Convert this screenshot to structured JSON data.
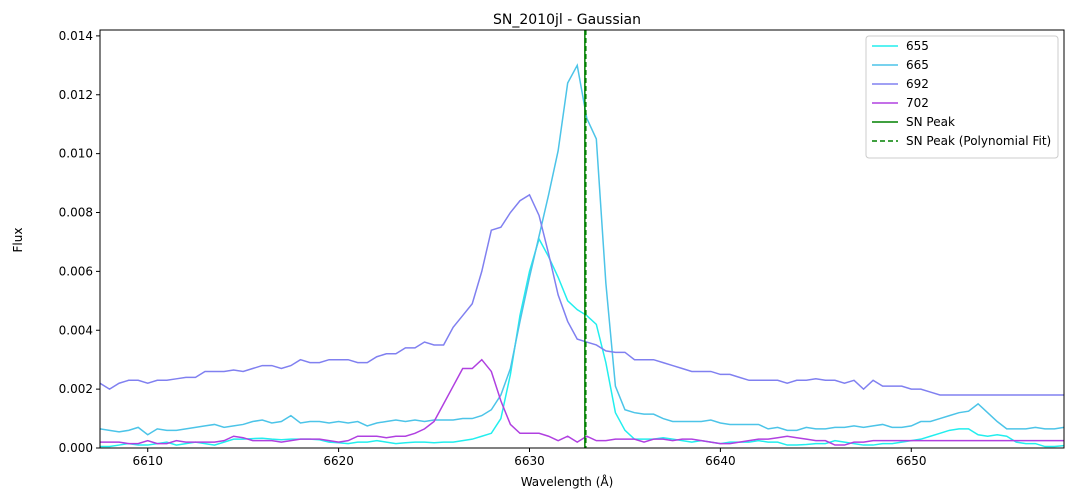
{
  "chart_data": {
    "type": "line",
    "title": "SN_2010jl - Gaussian",
    "xlabel": "Wavelength (Å)",
    "ylabel": "Flux",
    "xlim": [
      6607.5,
      6658
    ],
    "ylim": [
      0,
      0.0142
    ],
    "x_ticks": [
      6610,
      6620,
      6630,
      6640,
      6650
    ],
    "x_tick_labels": [
      "6610",
      "6620",
      "6630",
      "6640",
      "6650"
    ],
    "y_ticks": [
      0,
      0.002,
      0.004,
      0.006,
      0.008,
      0.01,
      0.012,
      0.014
    ],
    "y_tick_labels": [
      "0.000",
      "0.002",
      "0.004",
      "0.006",
      "0.008",
      "0.010",
      "0.012",
      "0.014"
    ],
    "grid": false,
    "legend_position": "top-right",
    "x": [
      6607.5,
      6608,
      6608.5,
      6609,
      6609.5,
      6610,
      6610.5,
      6611,
      6611.5,
      6612,
      6612.5,
      6613,
      6613.5,
      6614,
      6614.5,
      6615,
      6615.5,
      6616,
      6616.5,
      6617,
      6617.5,
      6618,
      6618.5,
      6619,
      6619.5,
      6620,
      6620.5,
      6621,
      6621.5,
      6622,
      6622.5,
      6623,
      6623.5,
      6624,
      6624.5,
      6625,
      6625.5,
      6626,
      6626.5,
      6627,
      6627.5,
      6628,
      6628.5,
      6629,
      6629.5,
      6630,
      6630.5,
      6631,
      6631.5,
      6632,
      6632.5,
      6633,
      6633.5,
      6634,
      6634.5,
      6635,
      6635.5,
      6636,
      6636.5,
      6637,
      6637.5,
      6638,
      6638.5,
      6639,
      6639.5,
      6640,
      6640.5,
      6641,
      6641.5,
      6642,
      6642.5,
      6643,
      6643.5,
      6644,
      6644.5,
      6645,
      6645.5,
      6646,
      6646.5,
      6647,
      6647.5,
      6648,
      6648.5,
      6649,
      6649.5,
      6650,
      6650.5,
      6651,
      6651.5,
      6652,
      6652.5,
      6653,
      6653.5,
      6654,
      6654.5,
      6655,
      6655.5,
      6656,
      6656.5,
      6657,
      6657.5,
      6658
    ],
    "series": [
      {
        "name": "655",
        "color": "#22eeee",
        "dashed": false,
        "values": [
          5e-05,
          5e-05,
          0.0001,
          0.00015,
          0.0001,
          0.0001,
          0.00015,
          0.0002,
          0.0001,
          0.00015,
          0.0002,
          0.00015,
          0.0001,
          0.0002,
          0.0003,
          0.0003,
          0.00032,
          0.00033,
          0.0003,
          0.00028,
          0.0003,
          0.0003,
          0.0003,
          0.00028,
          0.0002,
          0.00018,
          0.00015,
          0.0002,
          0.0002,
          0.00025,
          0.0002,
          0.00015,
          0.00018,
          0.0002,
          0.0002,
          0.00018,
          0.0002,
          0.0002,
          0.00025,
          0.0003,
          0.0004,
          0.0005,
          0.001,
          0.0025,
          0.0045,
          0.006,
          0.0071,
          0.0065,
          0.0058,
          0.005,
          0.0047,
          0.0045,
          0.0042,
          0.0029,
          0.0012,
          0.0006,
          0.0003,
          0.0003,
          0.0003,
          0.00035,
          0.0003,
          0.00025,
          0.0002,
          0.00025,
          0.0002,
          0.00015,
          0.0002,
          0.0002,
          0.0002,
          0.00025,
          0.0002,
          0.0002,
          0.0001,
          0.0001,
          0.00012,
          0.00015,
          0.00015,
          0.00025,
          0.0002,
          0.00015,
          0.0001,
          0.0001,
          0.00015,
          0.00015,
          0.0002,
          0.00025,
          0.0003,
          0.0004,
          0.0005,
          0.0006,
          0.00065,
          0.00065,
          0.00045,
          0.0004,
          0.00045,
          0.0004,
          0.0002,
          0.00015,
          0.00015,
          5e-05,
          5e-05,
          8e-05
        ]
      },
      {
        "name": "665",
        "color": "#4cc4e8",
        "dashed": false,
        "values": [
          0.00065,
          0.0006,
          0.00055,
          0.0006,
          0.0007,
          0.00045,
          0.00065,
          0.0006,
          0.0006,
          0.00065,
          0.0007,
          0.00075,
          0.0008,
          0.0007,
          0.00075,
          0.0008,
          0.0009,
          0.00095,
          0.00085,
          0.0009,
          0.0011,
          0.00085,
          0.0009,
          0.0009,
          0.00085,
          0.0009,
          0.00085,
          0.0009,
          0.00075,
          0.00085,
          0.0009,
          0.00095,
          0.0009,
          0.00095,
          0.0009,
          0.00095,
          0.00095,
          0.00095,
          0.001,
          0.001,
          0.0011,
          0.0013,
          0.0018,
          0.0027,
          0.0043,
          0.0058,
          0.0072,
          0.0086,
          0.0101,
          0.0124,
          0.013,
          0.0112,
          0.0105,
          0.0056,
          0.0021,
          0.0013,
          0.0012,
          0.00115,
          0.00115,
          0.001,
          0.0009,
          0.0009,
          0.0009,
          0.0009,
          0.00095,
          0.00085,
          0.0008,
          0.0008,
          0.0008,
          0.0008,
          0.00065,
          0.0007,
          0.0006,
          0.0006,
          0.0007,
          0.00065,
          0.00065,
          0.0007,
          0.0007,
          0.00075,
          0.0007,
          0.00075,
          0.0008,
          0.0007,
          0.0007,
          0.00075,
          0.0009,
          0.0009,
          0.001,
          0.0011,
          0.0012,
          0.00125,
          0.0015,
          0.0012,
          0.0009,
          0.00065,
          0.00065,
          0.00065,
          0.0007,
          0.00065,
          0.00065,
          0.0007
        ]
      },
      {
        "name": "692",
        "color": "#8080f0",
        "dashed": false,
        "values": [
          0.0022,
          0.002,
          0.0022,
          0.0023,
          0.0023,
          0.0022,
          0.0023,
          0.0023,
          0.00235,
          0.0024,
          0.0024,
          0.0026,
          0.0026,
          0.0026,
          0.00265,
          0.0026,
          0.0027,
          0.0028,
          0.0028,
          0.0027,
          0.0028,
          0.003,
          0.0029,
          0.0029,
          0.003,
          0.003,
          0.003,
          0.0029,
          0.0029,
          0.0031,
          0.0032,
          0.0032,
          0.0034,
          0.0034,
          0.0036,
          0.0035,
          0.0035,
          0.0041,
          0.0045,
          0.0049,
          0.006,
          0.0074,
          0.0075,
          0.008,
          0.0084,
          0.0086,
          0.0079,
          0.0066,
          0.0052,
          0.0043,
          0.0037,
          0.0036,
          0.0035,
          0.0033,
          0.00325,
          0.00325,
          0.003,
          0.003,
          0.003,
          0.0029,
          0.0028,
          0.0027,
          0.0026,
          0.0026,
          0.0026,
          0.0025,
          0.0025,
          0.0024,
          0.0023,
          0.0023,
          0.0023,
          0.0023,
          0.0022,
          0.0023,
          0.0023,
          0.00235,
          0.0023,
          0.0023,
          0.0022,
          0.0023,
          0.002,
          0.0023,
          0.0021,
          0.0021,
          0.0021,
          0.002,
          0.002,
          0.0019,
          0.0018,
          0.0018,
          0.0018,
          0.0018,
          0.0018,
          0.0018,
          0.0018,
          0.0018,
          0.0018,
          0.0018,
          0.0018,
          0.0018,
          0.0018,
          0.0018
        ]
      },
      {
        "name": "702",
        "color": "#b040e0",
        "dashed": false,
        "values": [
          0.0002,
          0.0002,
          0.0002,
          0.00015,
          0.00015,
          0.00025,
          0.00015,
          0.00015,
          0.00025,
          0.0002,
          0.0002,
          0.0002,
          0.0002,
          0.00025,
          0.0004,
          0.00035,
          0.00025,
          0.00025,
          0.00025,
          0.0002,
          0.00025,
          0.0003,
          0.0003,
          0.0003,
          0.00025,
          0.0002,
          0.00025,
          0.0004,
          0.0004,
          0.0004,
          0.00035,
          0.0004,
          0.0004,
          0.0005,
          0.00065,
          0.0009,
          0.0015,
          0.0021,
          0.0027,
          0.0027,
          0.003,
          0.0026,
          0.0016,
          0.0008,
          0.0005,
          0.0005,
          0.0005,
          0.0004,
          0.00025,
          0.0004,
          0.0002,
          0.0004,
          0.00025,
          0.00025,
          0.0003,
          0.0003,
          0.0003,
          0.0002,
          0.0003,
          0.0003,
          0.00025,
          0.0003,
          0.0003,
          0.00025,
          0.0002,
          0.00015,
          0.00015,
          0.0002,
          0.00025,
          0.0003,
          0.0003,
          0.00035,
          0.0004,
          0.00035,
          0.0003,
          0.00025,
          0.00025,
          0.0001,
          0.0001,
          0.0002,
          0.0002,
          0.00025,
          0.00025,
          0.00025,
          0.00025,
          0.00025,
          0.00025,
          0.00025,
          0.00025,
          0.00025,
          0.00025,
          0.00025,
          0.00025,
          0.00025,
          0.00025,
          0.00025,
          0.00025,
          0.00025,
          0.00025,
          0.00025,
          0.00025,
          0.00025
        ]
      }
    ],
    "vlines": [
      {
        "name": "SN Peak",
        "x": 6632.9,
        "color": "#008000",
        "dashed": false
      },
      {
        "name": "SN Peak (Polynomial Fit)",
        "x": 6632.95,
        "color": "#008000",
        "dashed": true
      }
    ]
  }
}
